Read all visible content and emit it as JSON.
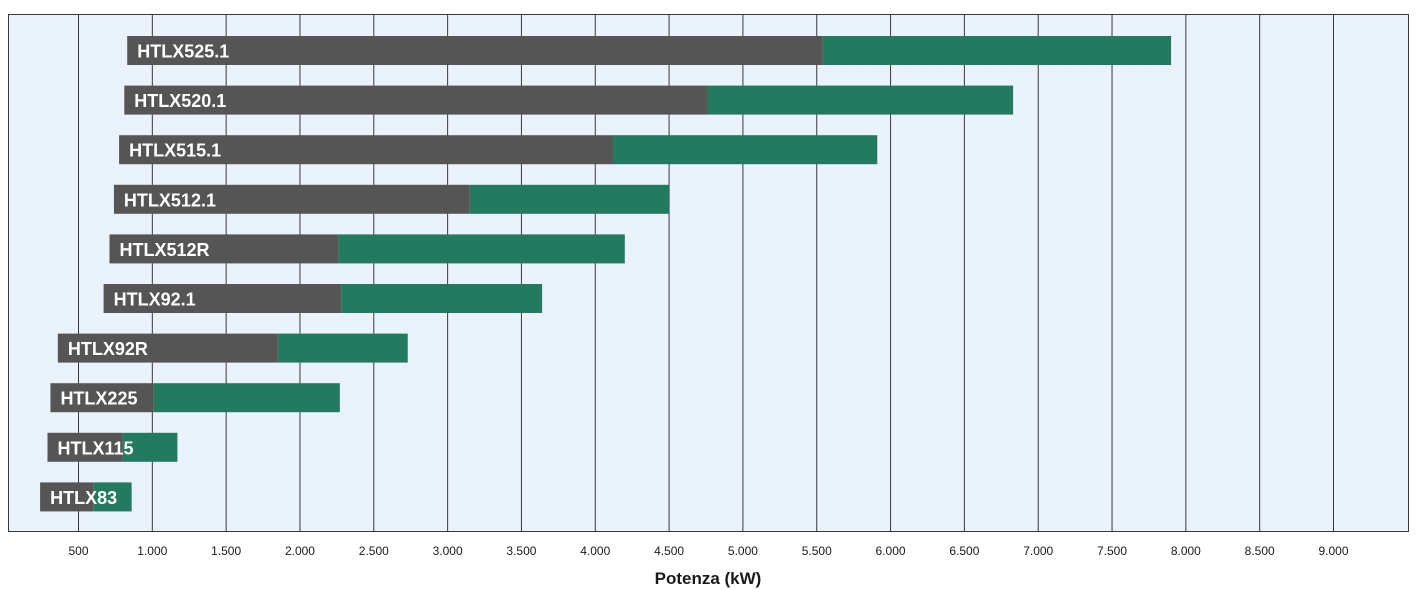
{
  "chart_data": {
    "type": "bar",
    "orientation": "horizontal",
    "stacked_range": true,
    "xlabel": "Potenza (kW)",
    "xlim": [
      250,
      9500
    ],
    "xticks": [
      500,
      1000,
      1500,
      2000,
      2500,
      3000,
      3500,
      4000,
      4500,
      5000,
      5500,
      6000,
      6500,
      7000,
      7500,
      8000,
      8500,
      9000
    ],
    "xtick_labels": [
      "500",
      "1.000",
      "1.500",
      "2.000",
      "2.500",
      "3.000",
      "3.500",
      "4.000",
      "4.500",
      "5.000",
      "5.500",
      "6.000",
      "6.500",
      "7.000",
      "7.500",
      "8.000",
      "8.500",
      "9.000"
    ],
    "grid": "vertical",
    "colors": {
      "dark_segment": "#555555",
      "green_segment": "#237a5e",
      "plot_background": "#eaf2fb",
      "grid": "#3a3a3a"
    },
    "categories": [
      "HTLX525.1",
      "HTLX520.1",
      "HTLX515.1",
      "HTLX512.1",
      "HTLX512R",
      "HTLX92.1",
      "HTLX92R",
      "HTLX225",
      "HTLX115",
      "HTLX83"
    ],
    "series": [
      {
        "start": [
          830,
          810,
          775,
          740,
          710,
          670,
          360,
          310,
          290,
          240
        ]
      },
      {
        "start": [
          5540,
          4760,
          4120,
          3150,
          2260,
          2280,
          1850,
          1010,
          800,
          600
        ]
      },
      {
        "end": [
          7900,
          6830,
          5910,
          4500,
          4200,
          3640,
          2730,
          2270,
          1170,
          860
        ]
      }
    ]
  }
}
